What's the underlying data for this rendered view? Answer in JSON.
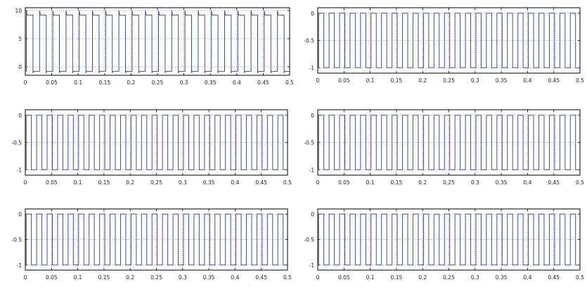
{
  "chart_data": [
    {
      "type": "line",
      "title": "",
      "xlabel": "",
      "ylabel": "",
      "xlim": [
        0,
        0.5
      ],
      "ylim": [
        -1.5,
        10.5
      ],
      "xticks": [
        0,
        0.05,
        0.1,
        0.15,
        0.2,
        0.25,
        0.3,
        0.35,
        0.4,
        0.45,
        0.5
      ],
      "xtick_labels": [
        "0",
        "0.05",
        "0.1",
        "0.15",
        "0.2",
        "0.25",
        "0.3",
        "0.35",
        "0.4",
        "0.45",
        "0.5"
      ],
      "yticks": [
        0,
        5,
        10
      ],
      "ytick_labels": [
        "0",
        "5",
        "10"
      ],
      "grid": true,
      "series": [
        {
          "waveform": "square",
          "high": 9.2,
          "low": -0.8,
          "overshoot_high": 10,
          "overshoot_low": 0,
          "cycles": 20,
          "color": "#3a4fa0"
        }
      ]
    },
    {
      "type": "line",
      "title": "",
      "xlabel": "",
      "ylabel": "",
      "xlim": [
        0,
        0.5
      ],
      "ylim": [
        -1.1,
        0.1
      ],
      "xticks": [
        0,
        0.05,
        0.1,
        0.15,
        0.2,
        0.25,
        0.3,
        0.35,
        0.4,
        0.45,
        0.5
      ],
      "xtick_labels": [
        "0",
        "0.05",
        "0.1",
        "0.15",
        "0.2",
        "0.25",
        "0.3",
        "0.35",
        "0.4",
        "0.45",
        "0.5"
      ],
      "yticks": [
        -1,
        -0.5,
        0
      ],
      "ytick_labels": [
        "-1",
        "-0.5",
        "0"
      ],
      "grid": true,
      "series": [
        {
          "waveform": "square",
          "high": 0,
          "low": -1,
          "cycles": 25,
          "color": "#3a4fa0"
        }
      ]
    },
    {
      "type": "line",
      "title": "",
      "xlabel": "",
      "ylabel": "",
      "xlim": [
        0,
        0.5
      ],
      "ylim": [
        -1.1,
        0.1
      ],
      "xticks": [
        0,
        0.05,
        0.1,
        0.15,
        0.2,
        0.25,
        0.3,
        0.35,
        0.4,
        0.45,
        0.5
      ],
      "xtick_labels": [
        "0",
        "0.05",
        "0.1",
        "0.15",
        "0.2",
        "0.25",
        "0.3",
        "0.35",
        "0.4",
        "0.45",
        "0.5"
      ],
      "yticks": [
        -1,
        -0.5,
        0
      ],
      "ytick_labels": [
        "-1",
        "-0.5",
        "0"
      ],
      "grid": true,
      "series": [
        {
          "waveform": "square",
          "high": 0,
          "low": -1,
          "cycles": 25,
          "color": "#3a4fa0"
        }
      ]
    },
    {
      "type": "line",
      "title": "",
      "xlabel": "",
      "ylabel": "",
      "xlim": [
        0,
        0.5
      ],
      "ylim": [
        -1.1,
        0.1
      ],
      "xticks": [
        0,
        0.05,
        0.1,
        0.15,
        0.2,
        0.25,
        0.3,
        0.35,
        0.4,
        0.45,
        0.5
      ],
      "xtick_labels": [
        "0",
        "0.05",
        "0.1",
        "0.15",
        "0.2",
        "0.25",
        "0.3",
        "0.35",
        "0.4",
        "0.45",
        "0.5"
      ],
      "yticks": [
        -1,
        -0.5,
        0
      ],
      "ytick_labels": [
        "-1",
        "-0.5",
        "0"
      ],
      "grid": true,
      "series": [
        {
          "waveform": "square",
          "high": 0,
          "low": -1,
          "cycles": 25,
          "color": "#3a4fa0"
        }
      ]
    },
    {
      "type": "line",
      "title": "",
      "xlabel": "",
      "ylabel": "",
      "xlim": [
        0,
        0.5
      ],
      "ylim": [
        -1.1,
        0.1
      ],
      "xticks": [
        0,
        0.05,
        0.1,
        0.15,
        0.2,
        0.25,
        0.3,
        0.35,
        0.4,
        0.45,
        0.5
      ],
      "xtick_labels": [
        "0",
        "0.05",
        "0.1",
        "0.15",
        "0.2",
        "0.25",
        "0.3",
        "0.35",
        "0.4",
        "0.45",
        "0.5"
      ],
      "yticks": [
        -1,
        -0.5,
        0
      ],
      "ytick_labels": [
        "-1",
        "-0.5",
        "0"
      ],
      "grid": true,
      "series": [
        {
          "waveform": "square",
          "high": 0,
          "low": -1,
          "cycles": 25,
          "color": "#3a4fa0"
        }
      ]
    },
    {
      "type": "line",
      "title": "",
      "xlabel": "",
      "ylabel": "",
      "xlim": [
        0,
        0.5
      ],
      "ylim": [
        -1.1,
        0.1
      ],
      "xticks": [
        0,
        0.05,
        0.1,
        0.15,
        0.2,
        0.25,
        0.3,
        0.35,
        0.4,
        0.45,
        0.5
      ],
      "xtick_labels": [
        "0",
        "0.05",
        "0.1",
        "0.15",
        "0.2",
        "0.25",
        "0.3",
        "0.35",
        "0.4",
        "0.45",
        "0.5"
      ],
      "yticks": [
        -1,
        -0.5,
        0
      ],
      "ytick_labels": [
        "-1",
        "-0.5",
        "0"
      ],
      "grid": true,
      "series": [
        {
          "waveform": "square",
          "high": 0,
          "low": -1,
          "cycles": 25,
          "color": "#3a4fa0"
        }
      ]
    }
  ]
}
